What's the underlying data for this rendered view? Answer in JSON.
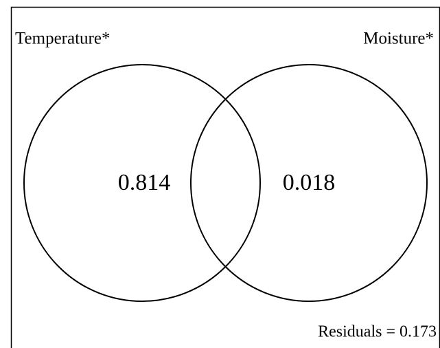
{
  "sets": [
    {
      "label": "Temperature*"
    },
    {
      "label": "Moisture*"
    }
  ],
  "regions": [
    {
      "value": 0.814
    },
    {
      "value": 0.018
    }
  ],
  "residuals": "Residuals = 0.173"
}
